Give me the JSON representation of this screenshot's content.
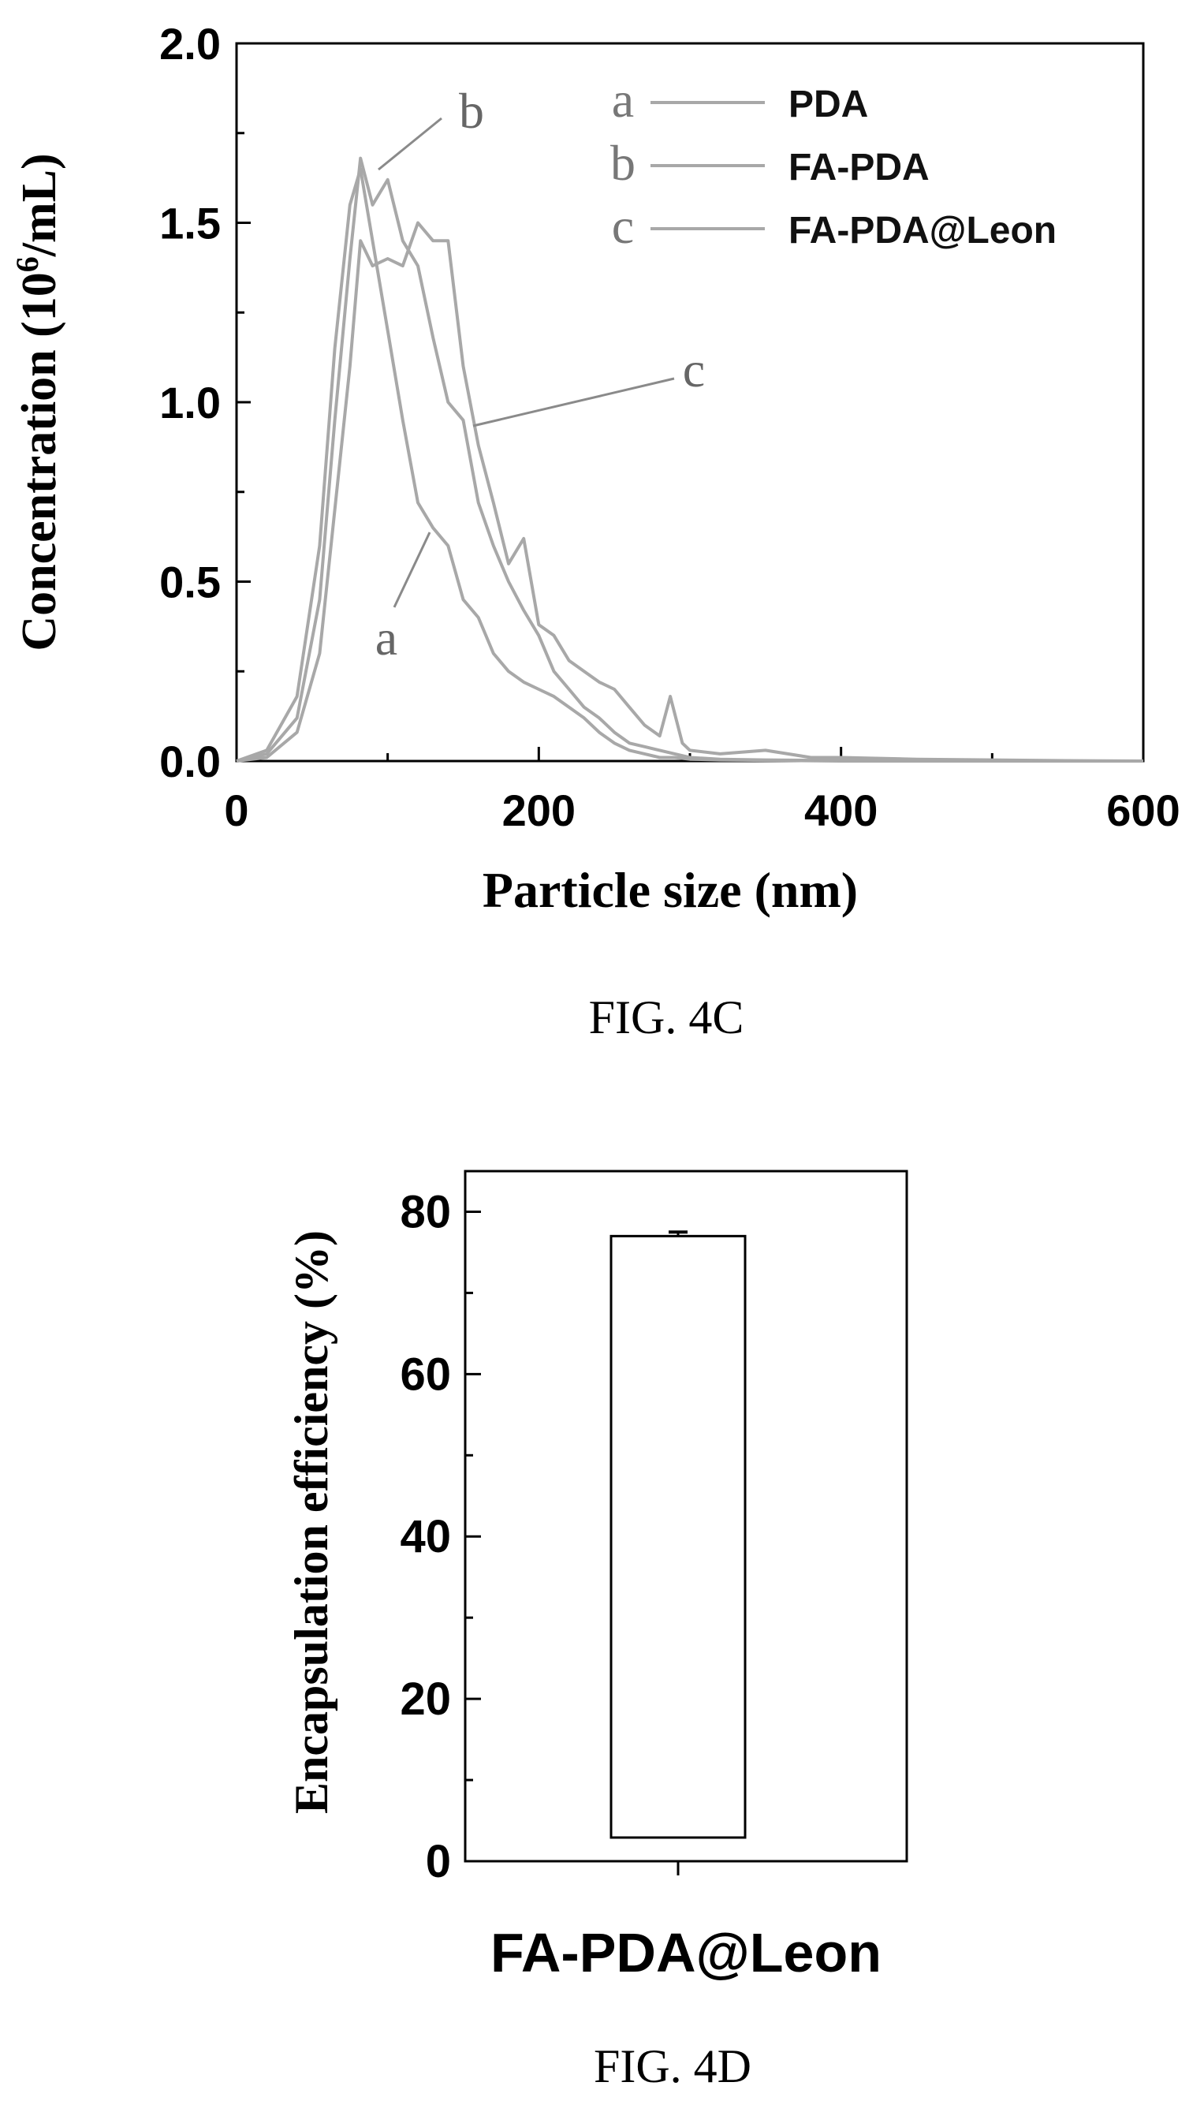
{
  "chart_data": [
    {
      "type": "line",
      "xlabel": "Particle size (nm)",
      "ylabel_main": "Concentration ",
      "ylabel_units": "(10",
      "ylabel_sup": "6",
      "ylabel_units_end": "/mL)",
      "xlim": [
        0,
        600
      ],
      "ylim": [
        0,
        2.0
      ],
      "x_ticks": [
        "0",
        "200",
        "400",
        "600"
      ],
      "y_ticks": [
        "0.0",
        "0.5",
        "1.0",
        "1.5",
        "2.0"
      ],
      "x_tick_values": [
        0,
        200,
        400,
        600
      ],
      "y_tick_values": [
        0,
        0.5,
        1.0,
        1.5,
        2.0
      ],
      "legend_position": "top-right",
      "series": [
        {
          "name": "PDA",
          "letter": "a",
          "x": [
            0,
            20,
            40,
            55,
            65,
            75,
            82,
            90,
            100,
            110,
            120,
            130,
            140,
            150,
            160,
            170,
            180,
            190,
            200,
            210,
            220,
            230,
            240,
            250,
            260,
            270,
            280,
            290,
            300,
            320,
            350,
            400,
            500,
            600
          ],
          "y": [
            0,
            0.03,
            0.18,
            0.6,
            1.15,
            1.55,
            1.65,
            1.45,
            1.2,
            0.95,
            0.72,
            0.65,
            0.6,
            0.45,
            0.4,
            0.3,
            0.25,
            0.22,
            0.2,
            0.18,
            0.15,
            0.12,
            0.08,
            0.05,
            0.03,
            0.02,
            0.01,
            0.01,
            0.005,
            0.003,
            0.002,
            0,
            0,
            0
          ]
        },
        {
          "name": "FA-PDA",
          "letter": "b",
          "x": [
            0,
            20,
            40,
            55,
            65,
            75,
            82,
            90,
            100,
            110,
            120,
            130,
            140,
            150,
            160,
            170,
            180,
            190,
            200,
            210,
            220,
            230,
            240,
            250,
            260,
            270,
            280,
            290,
            300,
            320,
            350,
            400,
            500,
            600
          ],
          "y": [
            0,
            0.02,
            0.12,
            0.45,
            0.95,
            1.4,
            1.68,
            1.55,
            1.62,
            1.45,
            1.38,
            1.18,
            1.0,
            0.95,
            0.72,
            0.6,
            0.5,
            0.42,
            0.35,
            0.25,
            0.2,
            0.15,
            0.12,
            0.08,
            0.05,
            0.04,
            0.03,
            0.02,
            0.01,
            0.005,
            0.003,
            0.001,
            0,
            0
          ]
        },
        {
          "name": "FA-PDA@Leon",
          "letter": "c",
          "x": [
            0,
            20,
            40,
            55,
            65,
            75,
            82,
            90,
            100,
            110,
            120,
            130,
            140,
            150,
            160,
            170,
            180,
            190,
            200,
            210,
            220,
            230,
            240,
            250,
            260,
            270,
            280,
            287,
            295,
            300,
            320,
            350,
            380,
            400,
            450,
            500,
            550,
            600
          ],
          "y": [
            0,
            0.01,
            0.08,
            0.3,
            0.7,
            1.1,
            1.45,
            1.38,
            1.4,
            1.38,
            1.5,
            1.45,
            1.45,
            1.1,
            0.88,
            0.72,
            0.55,
            0.62,
            0.38,
            0.35,
            0.28,
            0.25,
            0.22,
            0.2,
            0.15,
            0.1,
            0.07,
            0.18,
            0.05,
            0.03,
            0.02,
            0.03,
            0.01,
            0.01,
            0.005,
            0.003,
            0.001,
            0
          ]
        }
      ],
      "annotations": [
        {
          "text": "a",
          "target": "a"
        },
        {
          "text": "b",
          "target": "b"
        },
        {
          "text": "c",
          "target": "c"
        }
      ]
    },
    {
      "type": "bar",
      "categories": [
        "FA-PDA@Leon"
      ],
      "values": [
        77
      ],
      "error": [
        0.5
      ],
      "ylabel": "Encapsulation efficiency (%)",
      "xlabel": "",
      "ylim": [
        0,
        85
      ],
      "y_ticks": [
        "0",
        "20",
        "40",
        "60",
        "80"
      ],
      "y_tick_values": [
        0,
        20,
        40,
        60,
        80
      ]
    }
  ],
  "captions": {
    "fig_4c": "FIG. 4C",
    "fig_4d": "FIG. 4D"
  },
  "colors": {
    "curve": "#a8a8a8",
    "axis": "#000000",
    "bar_fill": "#ffffff"
  }
}
